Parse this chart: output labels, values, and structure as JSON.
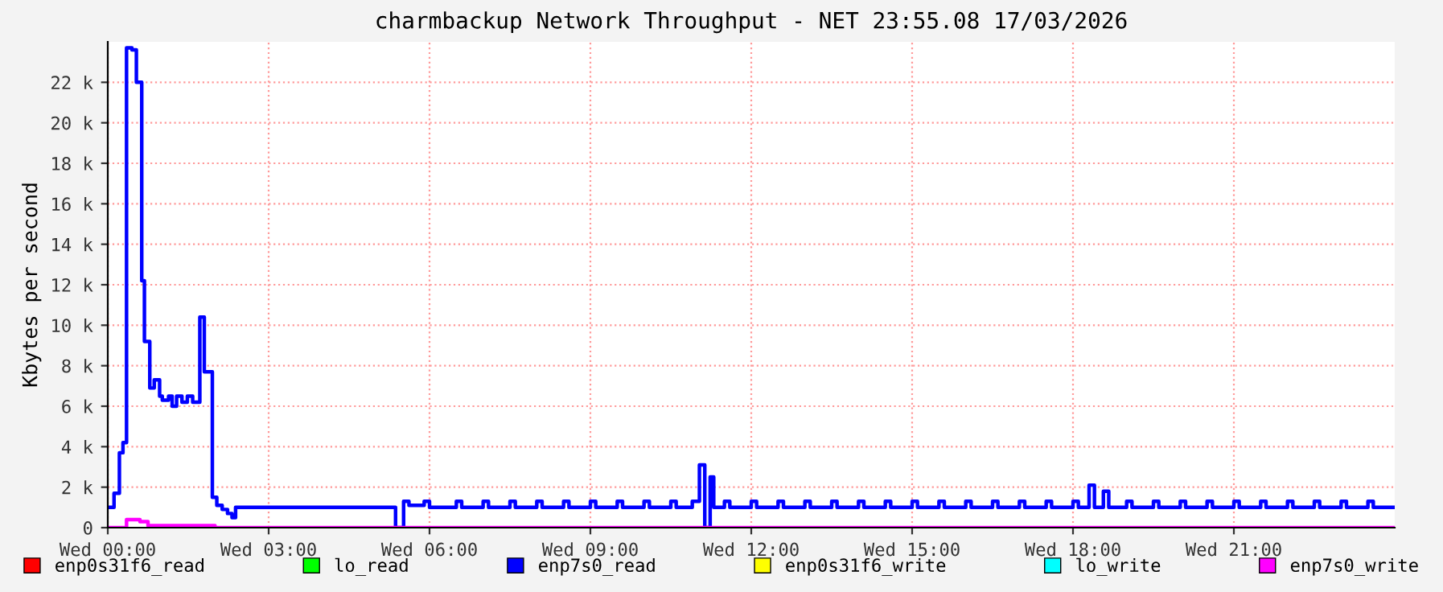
{
  "chart_data": {
    "type": "step",
    "title": "charmbackup Network Throughput - NET 23:55.08 17/03/2026",
    "ylabel": "Kbytes per second",
    "xlim": [
      "2026-03-18T00:00",
      "2026-03-19T00:00"
    ],
    "ylim": [
      0,
      24000
    ],
    "xticks": [
      {
        "value": "2026-03-18T00:00",
        "label": "Wed 00:00"
      },
      {
        "value": "2026-03-18T03:00",
        "label": "Wed 03:00"
      },
      {
        "value": "2026-03-18T06:00",
        "label": "Wed 06:00"
      },
      {
        "value": "2026-03-18T09:00",
        "label": "Wed 09:00"
      },
      {
        "value": "2026-03-18T12:00",
        "label": "Wed 12:00"
      },
      {
        "value": "2026-03-18T15:00",
        "label": "Wed 15:00"
      },
      {
        "value": "2026-03-18T18:00",
        "label": "Wed 18:00"
      },
      {
        "value": "2026-03-18T21:00",
        "label": "Wed 21:00"
      }
    ],
    "yticks": [
      0,
      {
        "value": 2000,
        "label": "2 k"
      },
      {
        "value": 4000,
        "label": "4 k"
      },
      {
        "value": 6000,
        "label": "6 k"
      },
      {
        "value": 8000,
        "label": "8 k"
      },
      {
        "value": 10000,
        "label": "10 k"
      },
      {
        "value": 12000,
        "label": "12 k"
      },
      {
        "value": 14000,
        "label": "14 k"
      },
      {
        "value": 16000,
        "label": "16 k"
      },
      {
        "value": 18000,
        "label": "18 k"
      },
      {
        "value": 20000,
        "label": "20 k"
      },
      {
        "value": 22000,
        "label": "22 k"
      }
    ],
    "grid": true,
    "legend": "bottom",
    "marker": "none",
    "line_style": "solid",
    "series": [
      {
        "name": "enp0s31f6_read",
        "color": "#ff0000"
      },
      {
        "name": "lo_read",
        "color": "#00ff00"
      },
      {
        "name": "enp7s0_read",
        "color": "#0000ff",
        "x": [
          "2026-03-18T00:01",
          "2026-03-18T00:07",
          "2026-03-18T00:13",
          "2026-03-18T00:17",
          "2026-03-18T00:21",
          "2026-03-18T00:27",
          "2026-03-18T00:32",
          "2026-03-18T00:38",
          "2026-03-18T00:41",
          "2026-03-18T00:47",
          "2026-03-18T00:52",
          "2026-03-18T00:58",
          "2026-03-18T01:01",
          "2026-03-18T01:08",
          "2026-03-18T01:12",
          "2026-03-18T01:17",
          "2026-03-18T01:23",
          "2026-03-18T01:29",
          "2026-03-18T01:35",
          "2026-03-18T01:43",
          "2026-03-18T01:48",
          "2026-03-18T01:57",
          "2026-03-18T02:02",
          "2026-03-18T02:08",
          "2026-03-18T02:14",
          "2026-03-18T02:19",
          "2026-03-18T02:23",
          "2026-03-18T05:22",
          "2026-03-18T05:31",
          "2026-03-18T05:37",
          "2026-03-18T05:54",
          "2026-03-18T06:00",
          "2026-03-18T06:30",
          "2026-03-18T06:36",
          "2026-03-18T07:00",
          "2026-03-18T07:06",
          "2026-03-18T07:30",
          "2026-03-18T07:36",
          "2026-03-18T08:00",
          "2026-03-18T08:06",
          "2026-03-18T08:30",
          "2026-03-18T08:36",
          "2026-03-18T09:00",
          "2026-03-18T09:06",
          "2026-03-18T09:30",
          "2026-03-18T09:36",
          "2026-03-18T10:00",
          "2026-03-18T10:06",
          "2026-03-18T10:30",
          "2026-03-18T10:36",
          "2026-03-18T10:54",
          "2026-03-18T11:02",
          "2026-03-18T11:08",
          "2026-03-18T11:14",
          "2026-03-18T11:18",
          "2026-03-18T11:30",
          "2026-03-18T11:36",
          "2026-03-18T12:00",
          "2026-03-18T12:06",
          "2026-03-18T12:30",
          "2026-03-18T12:36",
          "2026-03-18T13:00",
          "2026-03-18T13:06",
          "2026-03-18T13:30",
          "2026-03-18T13:36",
          "2026-03-18T14:00",
          "2026-03-18T14:06",
          "2026-03-18T14:30",
          "2026-03-18T14:36",
          "2026-03-18T15:00",
          "2026-03-18T15:06",
          "2026-03-18T15:30",
          "2026-03-18T15:36",
          "2026-03-18T16:00",
          "2026-03-18T16:06",
          "2026-03-18T16:30",
          "2026-03-18T16:36",
          "2026-03-18T17:00",
          "2026-03-18T17:06",
          "2026-03-18T17:30",
          "2026-03-18T17:36",
          "2026-03-18T18:00",
          "2026-03-18T18:06",
          "2026-03-18T18:18",
          "2026-03-18T18:24",
          "2026-03-18T18:34",
          "2026-03-18T18:40",
          "2026-03-18T19:00",
          "2026-03-18T19:06",
          "2026-03-18T19:30",
          "2026-03-18T19:36",
          "2026-03-18T20:00",
          "2026-03-18T20:06",
          "2026-03-18T20:30",
          "2026-03-18T20:36",
          "2026-03-18T21:00",
          "2026-03-18T21:06",
          "2026-03-18T21:30",
          "2026-03-18T21:36",
          "2026-03-18T22:00",
          "2026-03-18T22:06",
          "2026-03-18T22:30",
          "2026-03-18T22:36",
          "2026-03-18T23:00",
          "2026-03-18T23:06",
          "2026-03-18T23:30",
          "2026-03-18T23:36",
          "2026-03-19T00:00"
        ],
        "values": [
          1000,
          1700,
          3700,
          4200,
          23700,
          23600,
          22000,
          12200,
          9200,
          6900,
          7300,
          6500,
          6300,
          6500,
          6000,
          6500,
          6200,
          6500,
          6200,
          10400,
          7700,
          1500,
          1100,
          900,
          700,
          500,
          1000,
          0,
          1300,
          1100,
          1300,
          1000,
          1300,
          1000,
          1300,
          1000,
          1300,
          1000,
          1300,
          1000,
          1300,
          1000,
          1300,
          1000,
          1300,
          1000,
          1300,
          1000,
          1300,
          1000,
          1300,
          3100,
          0,
          2500,
          1000,
          1300,
          1000,
          1300,
          1000,
          1300,
          1000,
          1300,
          1000,
          1300,
          1000,
          1300,
          1000,
          1300,
          1000,
          1300,
          1000,
          1300,
          1000,
          1300,
          1000,
          1300,
          1000,
          1300,
          1000,
          1300,
          1000,
          1300,
          1000,
          2100,
          1000,
          1800,
          1000,
          1300,
          1000,
          1300,
          1000,
          1300,
          1000,
          1300,
          1000,
          1300,
          1000,
          1300,
          1000,
          1300,
          1000,
          1300,
          1000,
          1300,
          1000,
          1300,
          1000,
          1000
        ]
      },
      {
        "name": "enp0s31f6_write",
        "color": "#ffff00"
      },
      {
        "name": "lo_write",
        "color": "#00ffff"
      },
      {
        "name": "enp7s0_write",
        "color": "#ff00ff",
        "x": [
          "2026-03-18T00:00",
          "2026-03-18T00:21",
          "2026-03-18T00:36",
          "2026-03-18T00:45",
          "2026-03-18T02:00",
          "2026-03-19T00:00"
        ],
        "values": [
          0,
          400,
          300,
          100,
          0,
          0
        ]
      }
    ]
  }
}
